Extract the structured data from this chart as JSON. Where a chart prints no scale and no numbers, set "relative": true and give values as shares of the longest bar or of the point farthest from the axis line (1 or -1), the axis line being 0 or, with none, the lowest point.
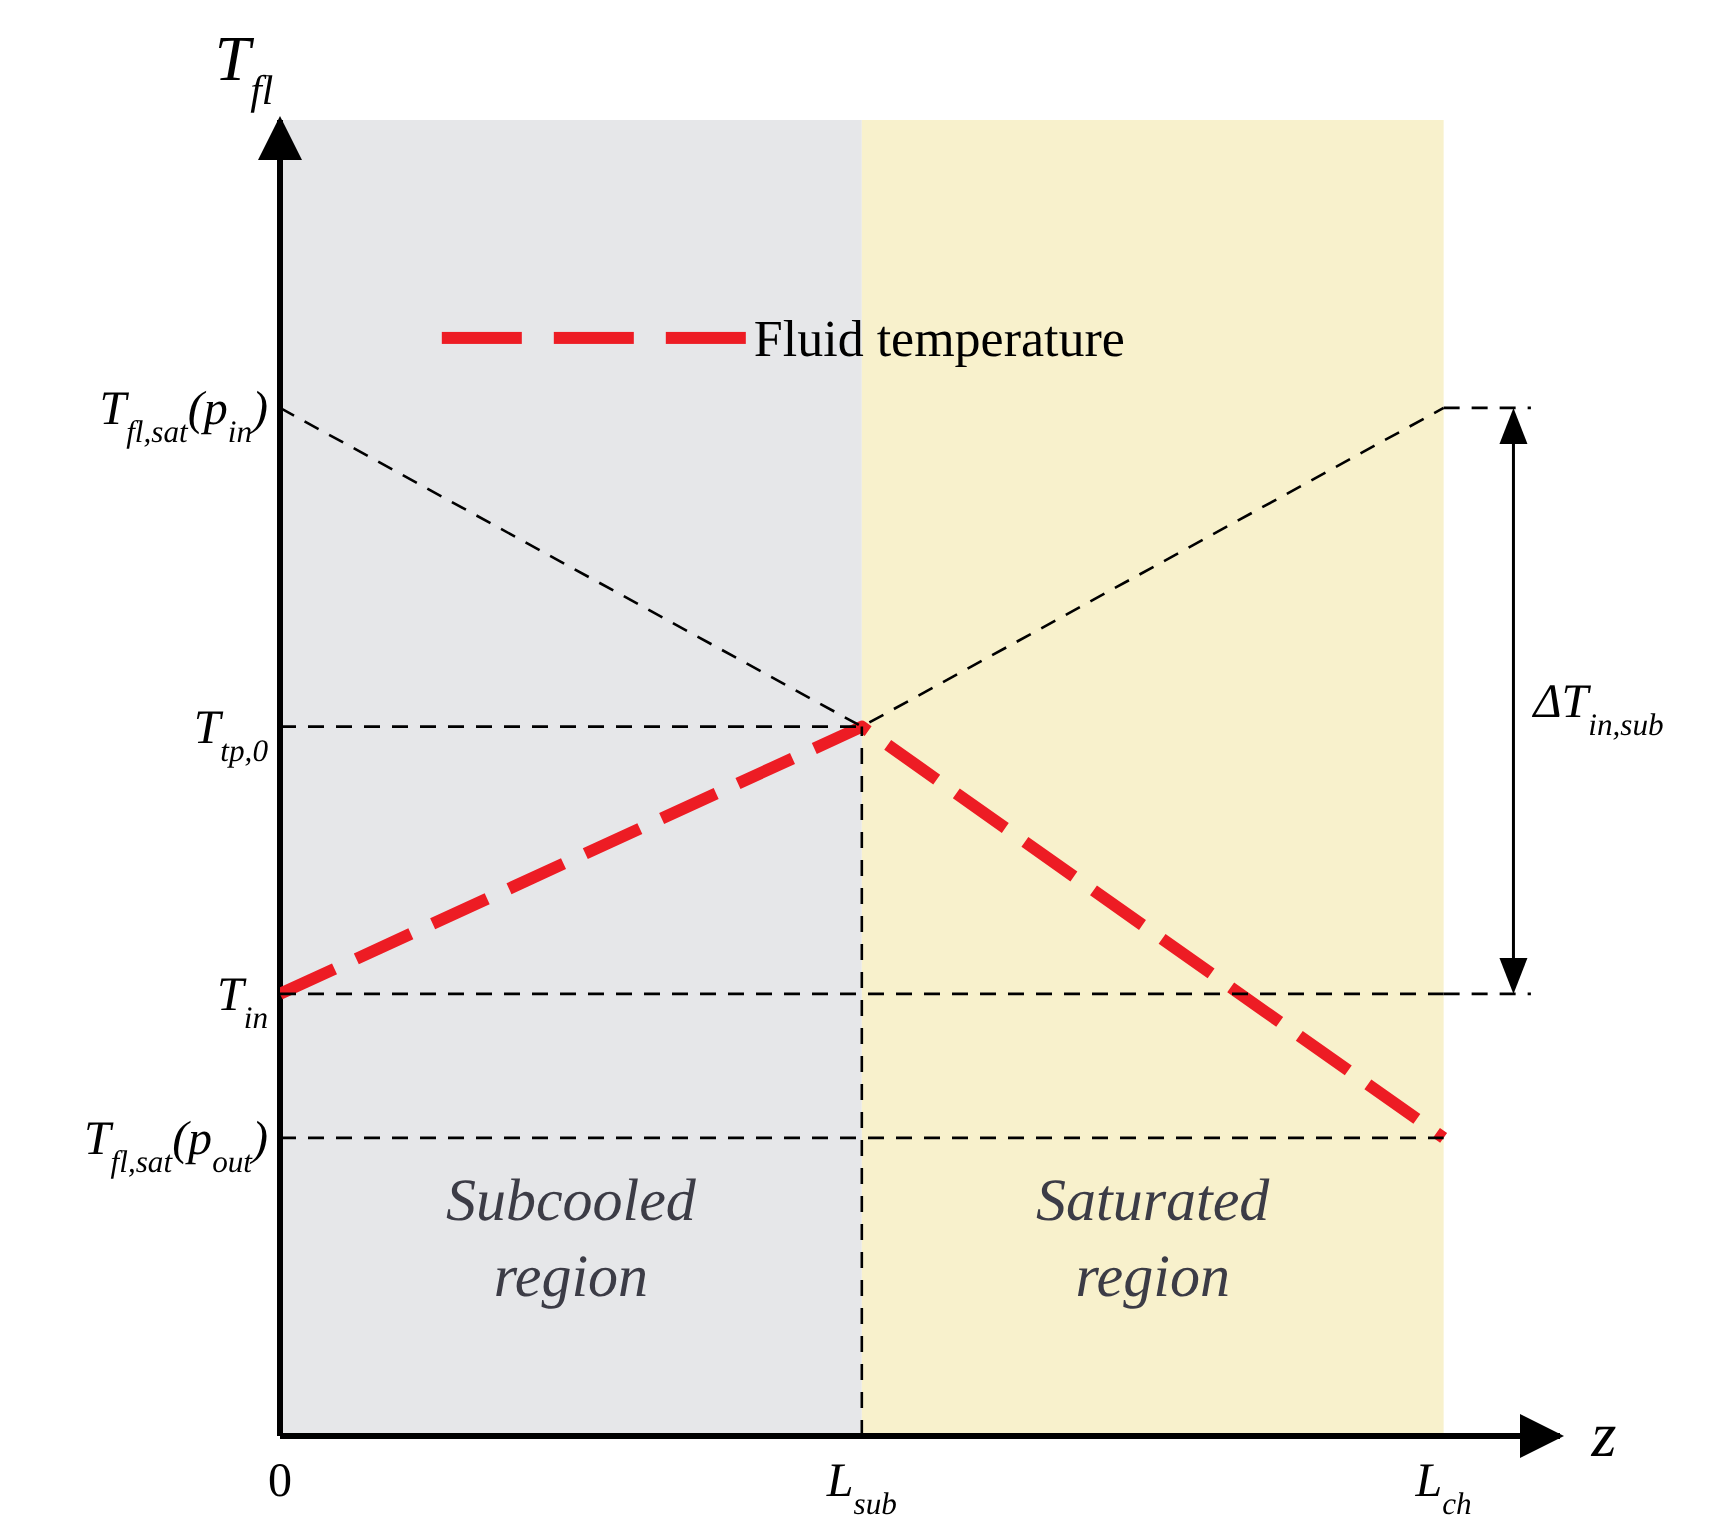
{
  "chart_data": {
    "type": "line",
    "relative": true,
    "xlabel": "z",
    "ylabel": "T$_{fl}$",
    "categories": [
      "0",
      "L$_{sub}$",
      "L$_{ch}$"
    ],
    "series": [
      {
        "name": "Fluid temperature",
        "color": "#ed1c24",
        "line_style": "dashed",
        "values": [
          0.43,
          0.69,
          0.29
        ]
      },
      {
        "color": "#000000",
        "line_style": "dashed",
        "values": [
          1,
          0.69,
          1
        ]
      },
      {
        "color": "#000000",
        "line_style": "dashed",
        "x": [
          "0",
          "L$_{sub}$"
        ],
        "values": [
          0.69,
          0.69
        ]
      },
      {
        "color": "#000000",
        "line_style": "dashed",
        "x": [
          "L$_{sub}$",
          "L$_{sub}$"
        ],
        "values": [
          0,
          0.69
        ]
      },
      {
        "color": "#000000",
        "line_style": "dashed",
        "x": [
          "0",
          "L$_{ch}$"
        ],
        "values": [
          0.43,
          0.43
        ]
      },
      {
        "color": "#000000",
        "line_style": "dashed",
        "x": [
          "0",
          "L$_{ch}$"
        ],
        "values": [
          0.29,
          0.29
        ]
      }
    ],
    "ref_lines": [
      {
        "axis": "x",
        "value": "0",
        "color": "#000000",
        "line_style": "solid"
      }
    ],
    "bands": [
      {
        "axis": "x",
        "from": "0",
        "to": "L$_{sub}$",
        "label": "Subcooled region",
        "color": "#e6e7e9"
      },
      {
        "axis": "x",
        "from": "L$_{sub}$",
        "to": "L$_{ch}$",
        "label": "Saturated region",
        "color": "#f8f1cc"
      }
    ],
    "annotations": [
      {
        "text": "T$_{fl,sat}$(p$_{in}$)",
        "x": "0",
        "y": 1
      },
      {
        "text": "T$_{tp,0}$",
        "x": "0",
        "y": 0.69
      },
      {
        "text": "T$_{in}$",
        "x": "0",
        "y": 0.43
      },
      {
        "text": "T$_{fl,sat}$(p$_{out}$)",
        "x": "0",
        "y": 0.29
      },
      "ΔT$_{in,sub}$"
    ],
    "legend": "top"
  }
}
